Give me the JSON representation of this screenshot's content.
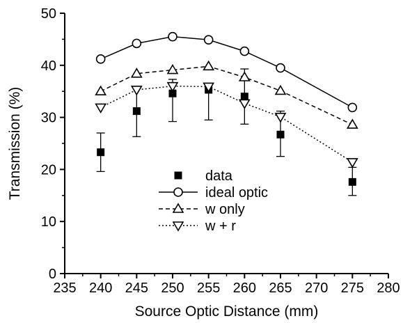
{
  "chart_data": {
    "type": "line",
    "title": "",
    "xlabel": "Source Optic Distance (mm)",
    "ylabel": "Transmission (%)",
    "xlim": [
      235,
      280
    ],
    "ylim": [
      0,
      50
    ],
    "xticks": [
      235,
      240,
      245,
      250,
      255,
      260,
      265,
      270,
      275,
      280
    ],
    "yticks": [
      0,
      10,
      20,
      30,
      40,
      50
    ],
    "grid": false,
    "legend_position": "center",
    "series": [
      {
        "name": "data",
        "marker": "filled-square",
        "line": "none",
        "x": [
          240,
          245,
          250,
          255,
          260,
          265,
          275
        ],
        "y": [
          23.3,
          31.2,
          34.6,
          35.3,
          34.0,
          26.7,
          17.6
        ],
        "err_lo": [
          19.6,
          26.3,
          29.2,
          29.5,
          28.7,
          22.5,
          15.0
        ],
        "err_hi": [
          27.0,
          35.6,
          37.3,
          36.5,
          39.3,
          31.2,
          20.4
        ]
      },
      {
        "name": "ideal optic",
        "marker": "open-circle",
        "line": "solid",
        "x": [
          240,
          245,
          250,
          255,
          260,
          265,
          275
        ],
        "y": [
          41.2,
          44.2,
          45.5,
          44.9,
          42.7,
          39.5,
          31.9
        ]
      },
      {
        "name": "w only",
        "marker": "open-triangle-up",
        "line": "dashed",
        "x": [
          240,
          245,
          250,
          255,
          260,
          265,
          275
        ],
        "y": [
          35.0,
          38.4,
          39.1,
          39.8,
          37.7,
          35.1,
          28.6
        ]
      },
      {
        "name": "w + r",
        "marker": "open-triangle-down",
        "line": "dotted",
        "x": [
          240,
          245,
          250,
          255,
          260,
          265,
          275
        ],
        "y": [
          31.9,
          35.3,
          36.0,
          35.9,
          32.7,
          30.1,
          21.4
        ]
      }
    ]
  }
}
